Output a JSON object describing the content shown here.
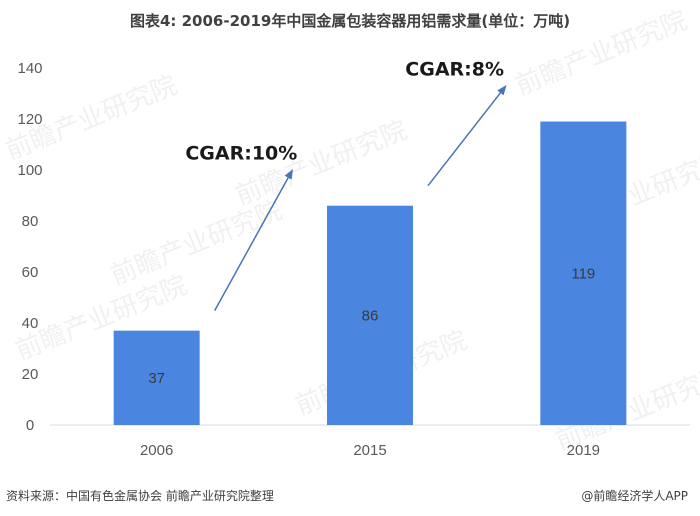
{
  "chart_data": {
    "type": "bar",
    "title": "图表4: 2006-2019年中国金属包装容器用铝需求量(单位：万吨)",
    "categories": [
      "2006",
      "2015",
      "2019"
    ],
    "values": [
      37,
      86,
      119
    ],
    "ylim": [
      0,
      140
    ],
    "yticks": [
      0,
      20,
      40,
      60,
      80,
      100,
      120,
      140
    ],
    "xlabel": "",
    "ylabel": "",
    "grid": false,
    "legend": "none",
    "bar_color": "#4a86e0",
    "annotations": [
      {
        "text": "CGAR:10%",
        "between": [
          "2006",
          "2015"
        ]
      },
      {
        "text": "CGAR:8%",
        "between": [
          "2015",
          "2019"
        ]
      }
    ],
    "arrow_color": "#4a74b8"
  },
  "footer": {
    "source": "资料来源：中国有色金属协会 前瞻产业研究院整理",
    "brand": "@前瞻经济学人APP"
  },
  "watermark": {
    "text": "前瞻产业研究院"
  }
}
